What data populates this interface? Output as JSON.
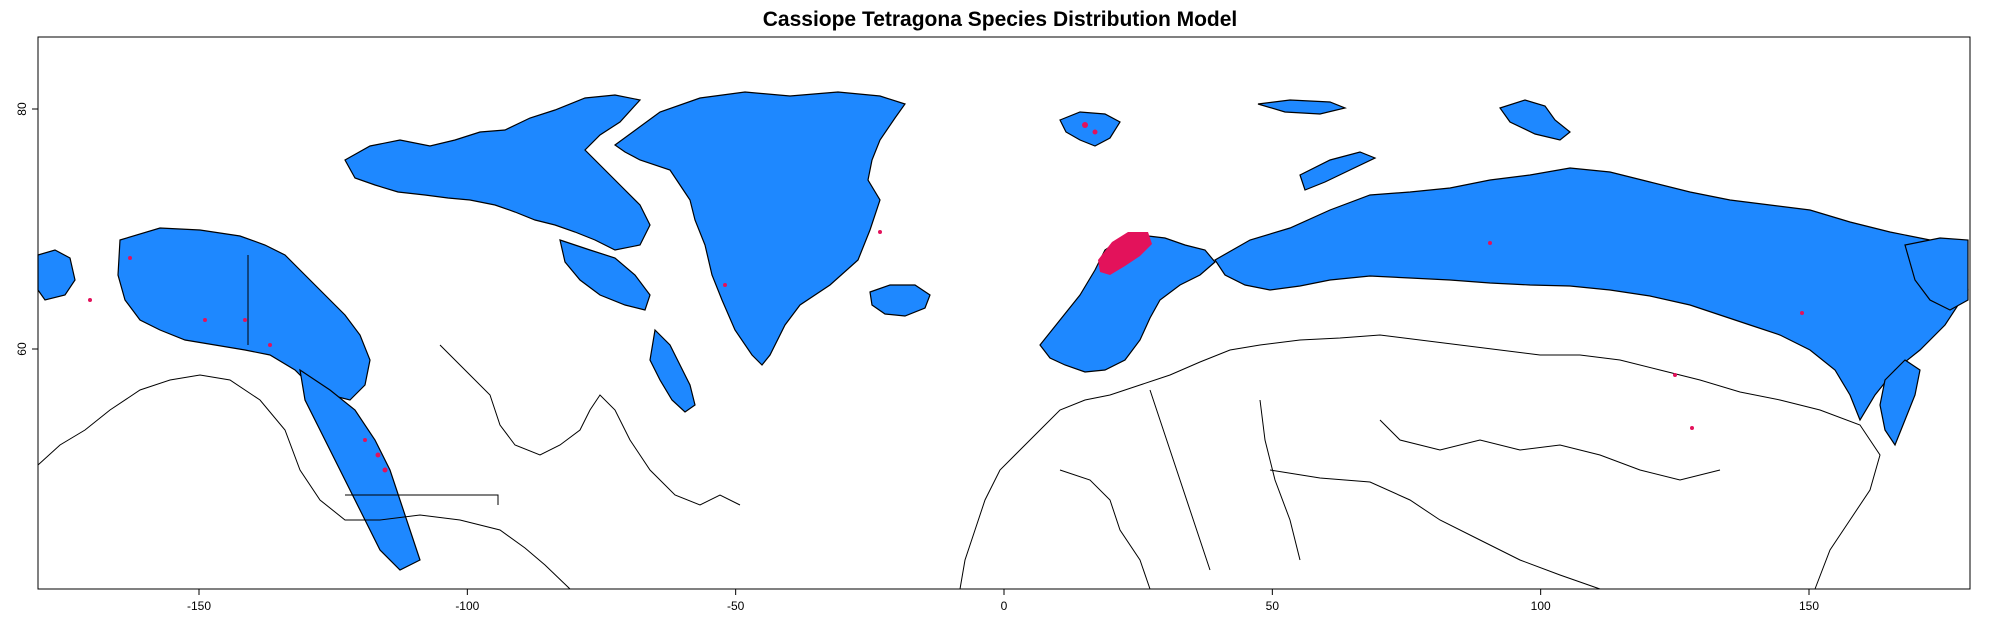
{
  "title": "Cassiope Tetragona Species Distribution Model",
  "colors": {
    "suitable": "#1e88ff",
    "presence": "#e3125b",
    "outline": "#000000",
    "background": "#ffffff"
  },
  "chart_data": {
    "type": "map",
    "xlim": [
      -180,
      180
    ],
    "ylim": [
      40,
      86
    ],
    "x_ticks": [
      -150,
      -100,
      -50,
      0,
      50,
      100,
      150
    ],
    "y_ticks": [
      60,
      80
    ],
    "x_tick_labels": [
      "-150",
      "-100",
      "-50",
      "0",
      "50",
      "100",
      "150"
    ],
    "y_tick_labels": [
      "60",
      "80"
    ],
    "legend": "none"
  }
}
